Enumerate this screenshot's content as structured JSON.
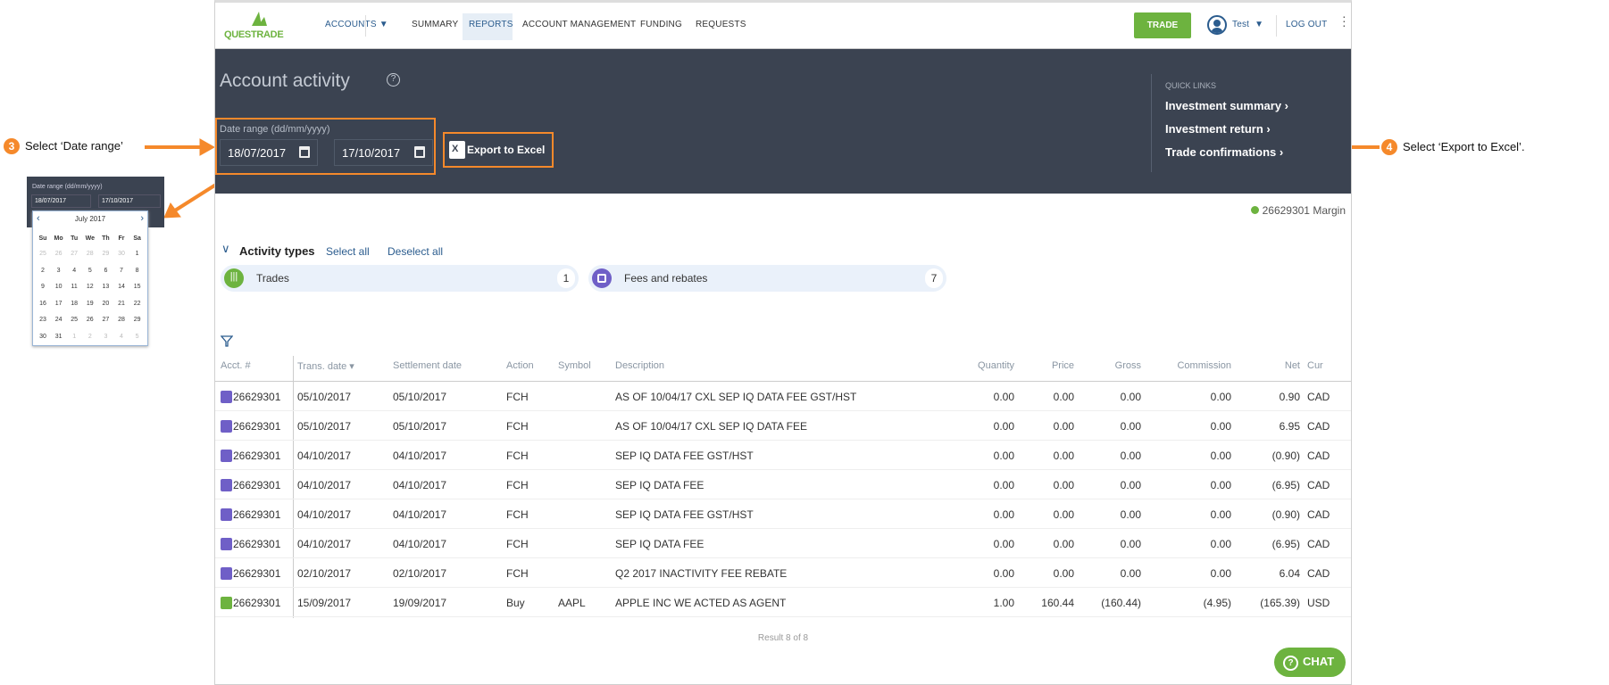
{
  "annotations": {
    "step3_number": "3",
    "step3_text": "Select ‘Date range’",
    "step4_number": "4",
    "step4_text": "Select ‘Export to Excel’."
  },
  "colors": {
    "accent": "#f5892b",
    "brand_green": "#6db33f",
    "header_bg": "#3b4351",
    "nav_blue": "#2b5c8e",
    "fee_icon": "#6f5fc7"
  },
  "nav": {
    "logo": "QUESTRADE",
    "items": [
      "ACCOUNTS",
      "SUMMARY",
      "REPORTS",
      "ACCOUNT MANAGEMENT",
      "FUNDING",
      "REQUESTS"
    ],
    "active": "REPORTS",
    "trade": "TRADE",
    "user": "Test",
    "logout": "LOG OUT"
  },
  "header": {
    "title": "Account activity",
    "date_label": "Date range (dd/mm/yyyy)",
    "date_from": "18/07/2017",
    "date_to": "17/10/2017",
    "export": "Export to Excel",
    "quick_links_title": "QUICK LINKS",
    "quick_links": [
      "Investment summary",
      "Investment return",
      "Trade confirmations"
    ]
  },
  "calendar": {
    "label": "Date range (dd/mm/yyyy)",
    "from": "18/07/2017",
    "to": "17/10/2017",
    "month": "July 2017",
    "weekdays": [
      "Su",
      "Mo",
      "Tu",
      "We",
      "Th",
      "Fr",
      "Sa"
    ],
    "days": [
      [
        "25",
        "26",
        "27",
        "28",
        "29",
        "30",
        "1"
      ],
      [
        "2",
        "3",
        "4",
        "5",
        "6",
        "7",
        "8"
      ],
      [
        "9",
        "10",
        "11",
        "12",
        "13",
        "14",
        "15"
      ],
      [
        "16",
        "17",
        "18",
        "19",
        "20",
        "21",
        "22"
      ],
      [
        "23",
        "24",
        "25",
        "26",
        "27",
        "28",
        "29"
      ],
      [
        "30",
        "31",
        "1",
        "2",
        "3",
        "4",
        "5"
      ]
    ]
  },
  "account": {
    "label": "26629301 Margin"
  },
  "activity": {
    "title": "Activity types",
    "select_all": "Select all",
    "deselect_all": "Deselect all",
    "types": [
      {
        "label": "Trades",
        "count": "1",
        "icon": "trades-icon"
      },
      {
        "label": "Fees and rebates",
        "count": "7",
        "icon": "fees-icon"
      }
    ]
  },
  "table": {
    "columns": [
      "Acct. #",
      "Trans. date",
      "Settlement date",
      "Action",
      "Symbol",
      "Description",
      "Quantity",
      "Price",
      "Gross",
      "Commission",
      "Net",
      "Cur"
    ],
    "rows": [
      {
        "type": "fee",
        "acct": "26629301",
        "trans": "05/10/2017",
        "settle": "05/10/2017",
        "action": "FCH",
        "symbol": "",
        "desc": "AS OF 10/04/17 CXL SEP IQ DATA FEE GST/HST",
        "qty": "0.00",
        "price": "0.00",
        "gross": "0.00",
        "comm": "0.00",
        "net": "0.90",
        "cur": "CAD"
      },
      {
        "type": "fee",
        "acct": "26629301",
        "trans": "05/10/2017",
        "settle": "05/10/2017",
        "action": "FCH",
        "symbol": "",
        "desc": "AS OF 10/04/17 CXL SEP IQ DATA FEE",
        "qty": "0.00",
        "price": "0.00",
        "gross": "0.00",
        "comm": "0.00",
        "net": "6.95",
        "cur": "CAD"
      },
      {
        "type": "fee",
        "acct": "26629301",
        "trans": "04/10/2017",
        "settle": "04/10/2017",
        "action": "FCH",
        "symbol": "",
        "desc": "SEP IQ DATA FEE GST/HST",
        "qty": "0.00",
        "price": "0.00",
        "gross": "0.00",
        "comm": "0.00",
        "net": "(0.90)",
        "cur": "CAD"
      },
      {
        "type": "fee",
        "acct": "26629301",
        "trans": "04/10/2017",
        "settle": "04/10/2017",
        "action": "FCH",
        "symbol": "",
        "desc": "SEP IQ DATA FEE",
        "qty": "0.00",
        "price": "0.00",
        "gross": "0.00",
        "comm": "0.00",
        "net": "(6.95)",
        "cur": "CAD"
      },
      {
        "type": "fee",
        "acct": "26629301",
        "trans": "04/10/2017",
        "settle": "04/10/2017",
        "action": "FCH",
        "symbol": "",
        "desc": "SEP IQ DATA FEE GST/HST",
        "qty": "0.00",
        "price": "0.00",
        "gross": "0.00",
        "comm": "0.00",
        "net": "(0.90)",
        "cur": "CAD"
      },
      {
        "type": "fee",
        "acct": "26629301",
        "trans": "04/10/2017",
        "settle": "04/10/2017",
        "action": "FCH",
        "symbol": "",
        "desc": "SEP IQ DATA FEE",
        "qty": "0.00",
        "price": "0.00",
        "gross": "0.00",
        "comm": "0.00",
        "net": "(6.95)",
        "cur": "CAD"
      },
      {
        "type": "fee",
        "acct": "26629301",
        "trans": "02/10/2017",
        "settle": "02/10/2017",
        "action": "FCH",
        "symbol": "",
        "desc": "Q2 2017 INACTIVITY FEE REBATE",
        "qty": "0.00",
        "price": "0.00",
        "gross": "0.00",
        "comm": "0.00",
        "net": "6.04",
        "cur": "CAD"
      },
      {
        "type": "trade",
        "acct": "26629301",
        "trans": "15/09/2017",
        "settle": "19/09/2017",
        "action": "Buy",
        "symbol": "AAPL",
        "desc": "APPLE INC WE ACTED AS AGENT",
        "qty": "1.00",
        "price": "160.44",
        "gross": "(160.44)",
        "comm": "(4.95)",
        "net": "(165.39)",
        "cur": "USD"
      }
    ],
    "result": "Result 8 of 8"
  },
  "chat": "CHAT"
}
